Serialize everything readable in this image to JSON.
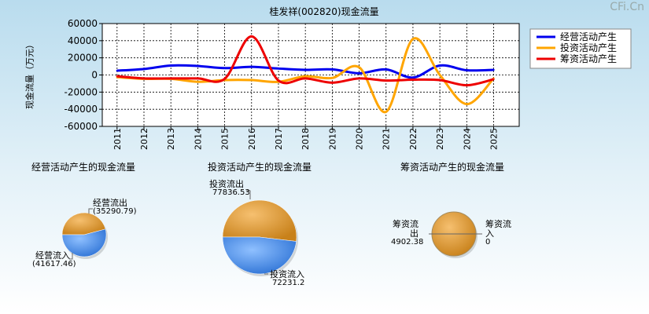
{
  "watermark": "CFi.Cn",
  "colors": {
    "operating": "#0000ee",
    "investing": "#ffa500",
    "financing": "#ee0000",
    "pie_orange": "#e69a2e",
    "pie_blue": "#4d8ee6"
  },
  "chart_data": [
    {
      "type": "line",
      "title": "桂发祥(002820)现金流量",
      "ylabel": "现金流量（万元）",
      "xlabel": "",
      "categories": [
        "2011",
        "2012",
        "2013",
        "2014",
        "2015",
        "2016",
        "2017",
        "2018",
        "2019",
        "2020",
        "2021",
        "2022",
        "2023",
        "2024",
        "2025"
      ],
      "ylim": [
        -60000,
        60000
      ],
      "yticks": [
        -60000,
        -40000,
        -20000,
        0,
        20000,
        40000,
        60000
      ],
      "ytick_labels": [
        "-60000",
        "-40000",
        "-20000",
        "0",
        "20000",
        "40000",
        "60000"
      ],
      "grid": true,
      "legend": "top-right",
      "series": [
        {
          "name": "经营活动产生",
          "color": "#0000ee",
          "values": [
            5000,
            7000,
            11000,
            10500,
            8000,
            9500,
            7500,
            6000,
            6500,
            2000,
            6500,
            -3000,
            11000,
            5500,
            6000
          ]
        },
        {
          "name": "投资活动产生",
          "color": "#ffa500",
          "values": [
            -2500,
            -4500,
            -4500,
            -8000,
            -6000,
            -6000,
            -8000,
            -1500,
            -3500,
            9000,
            -43000,
            42000,
            0,
            -34000,
            -4000
          ]
        },
        {
          "name": "筹资活动产生",
          "color": "#ee0000",
          "values": [
            -1500,
            -4000,
            -4000,
            -4000,
            -4500,
            45000,
            -6500,
            -4000,
            -9000,
            -4000,
            -6500,
            -5500,
            -6000,
            -12000,
            -5000
          ]
        }
      ]
    },
    {
      "type": "pie",
      "title": "经营活动产生的现金流量",
      "slices": [
        {
          "label": "经营流出",
          "value": 35290.79,
          "value_text": "(35290.79)",
          "color": "#e69a2e"
        },
        {
          "label": "经营流入",
          "value": 41617.46,
          "value_text": "(41617.46)",
          "color": "#4d8ee6"
        }
      ]
    },
    {
      "type": "pie",
      "title": "投资活动产生的现金流量",
      "slices": [
        {
          "label": "投资流出",
          "value": 77836.53,
          "value_text": "77836.53",
          "color": "#e69a2e"
        },
        {
          "label": "投资流入",
          "value": 72231.2,
          "value_text": "72231.2",
          "color": "#4d8ee6"
        }
      ]
    },
    {
      "type": "pie",
      "title": "筹资活动产生的现金流量",
      "slices": [
        {
          "label_line1": "筹资流",
          "label_line2": "出",
          "value": 4902.38,
          "value_text": "4902.38",
          "color": "#e69a2e"
        },
        {
          "label_line1": "筹资流",
          "label_line2": "入",
          "value": 0,
          "value_text": "0",
          "color": "#4d8ee6"
        }
      ]
    }
  ]
}
